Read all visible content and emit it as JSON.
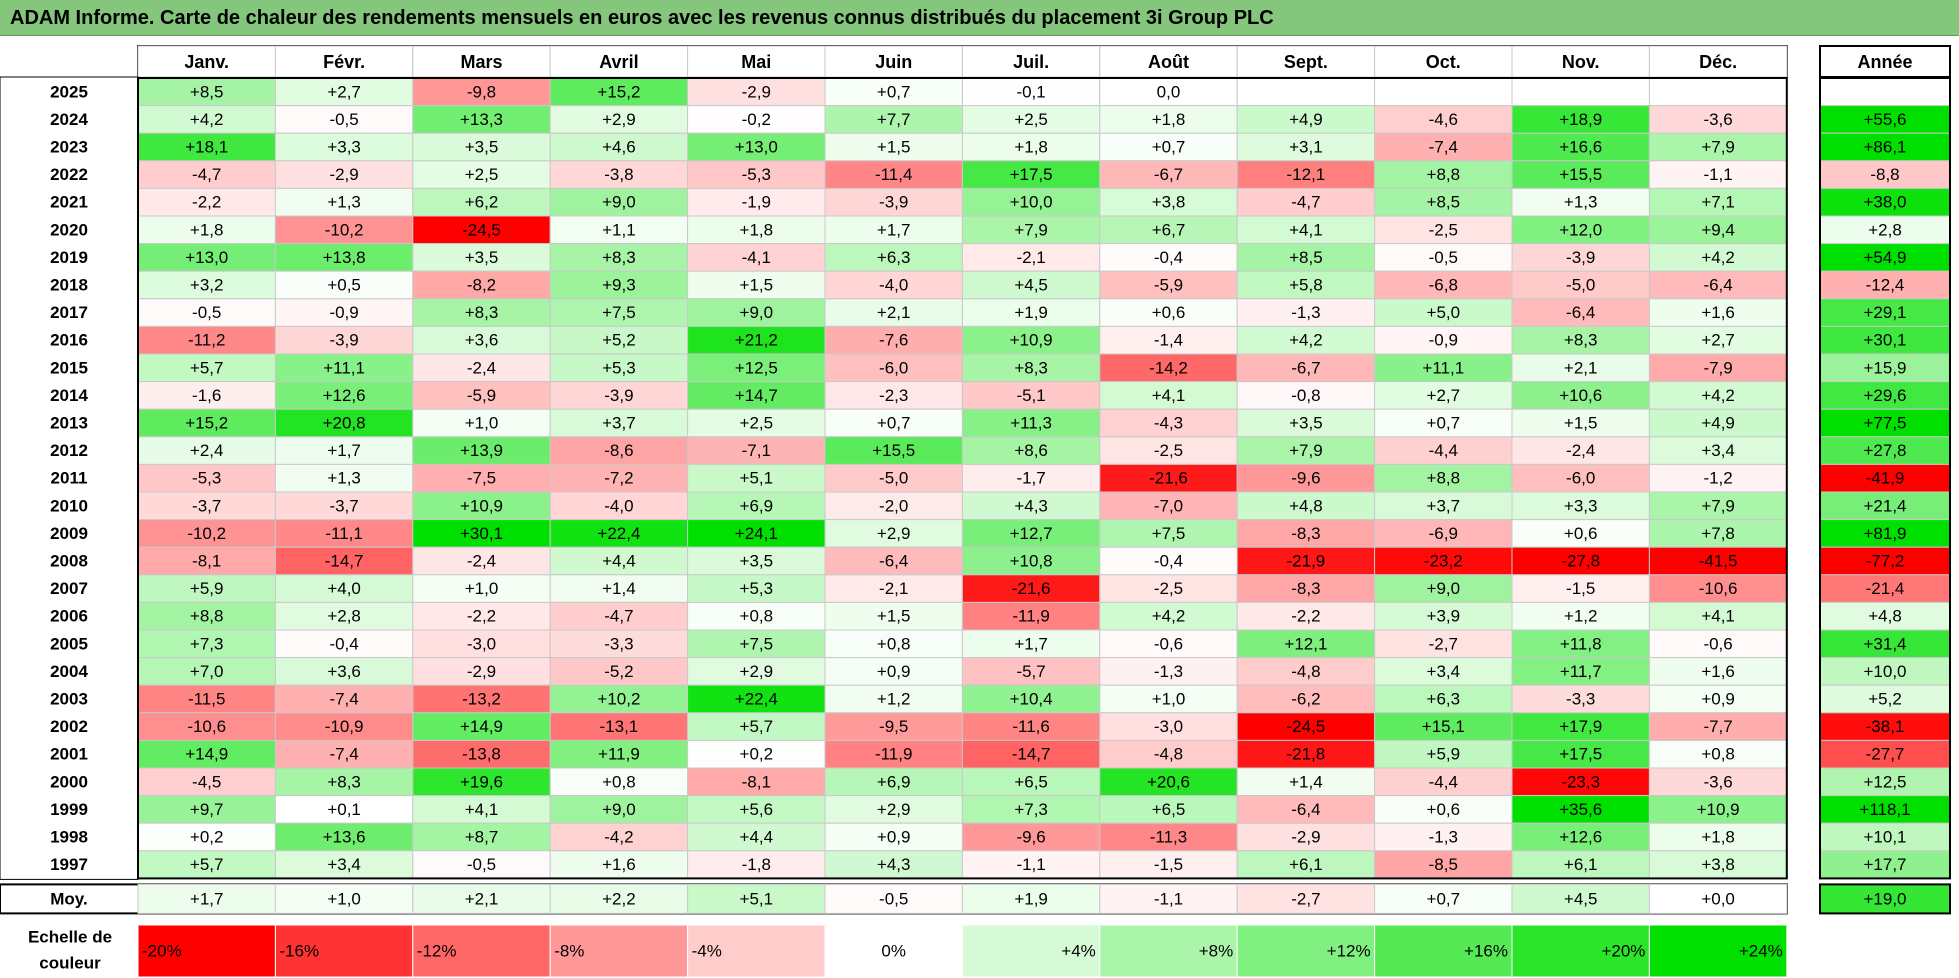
{
  "title": "ADAM Informe. Carte de chaleur des rendements mensuels en euros avec les revenus connus distribués du placement 3i Group PLC",
  "chart_data": {
    "type": "heatmap",
    "title": "ADAM Informe. Carte de chaleur des rendements mensuels en euros avec les revenus connus distribués du placement 3i Group PLC",
    "months": [
      "Janv.",
      "Févr.",
      "Mars",
      "Avril",
      "Mai",
      "Juin",
      "Juil.",
      "Août",
      "Sept.",
      "Oct.",
      "Nov.",
      "Déc."
    ],
    "year_header": "Année",
    "avg_label": "Moy.",
    "rows": [
      {
        "year": "2025",
        "values": [
          "+8,5",
          "+2,7",
          "-9,8",
          "+15,2",
          "-2,9",
          "+0,7",
          "-0,1",
          "0,0",
          "",
          "",
          "",
          ""
        ],
        "annual": ""
      },
      {
        "year": "2024",
        "values": [
          "+4,2",
          "-0,5",
          "+13,3",
          "+2,9",
          "-0,2",
          "+7,7",
          "+2,5",
          "+1,8",
          "+4,9",
          "-4,6",
          "+18,9",
          "-3,6"
        ],
        "annual": "+55,6"
      },
      {
        "year": "2023",
        "values": [
          "+18,1",
          "+3,3",
          "+3,5",
          "+4,6",
          "+13,0",
          "+1,5",
          "+1,8",
          "+0,7",
          "+3,1",
          "-7,4",
          "+16,6",
          "+7,9"
        ],
        "annual": "+86,1"
      },
      {
        "year": "2022",
        "values": [
          "-4,7",
          "-2,9",
          "+2,5",
          "-3,8",
          "-5,3",
          "-11,4",
          "+17,5",
          "-6,7",
          "-12,1",
          "+8,8",
          "+15,5",
          "-1,1"
        ],
        "annual": "-8,8"
      },
      {
        "year": "2021",
        "values": [
          "-2,2",
          "+1,3",
          "+6,2",
          "+9,0",
          "-1,9",
          "-3,9",
          "+10,0",
          "+3,8",
          "-4,7",
          "+8,5",
          "+1,3",
          "+7,1"
        ],
        "annual": "+38,0"
      },
      {
        "year": "2020",
        "values": [
          "+1,8",
          "-10,2",
          "-24,5",
          "+1,1",
          "+1,8",
          "+1,7",
          "+7,9",
          "+6,7",
          "+4,1",
          "-2,5",
          "+12,0",
          "+9,4"
        ],
        "annual": "+2,8"
      },
      {
        "year": "2019",
        "values": [
          "+13,0",
          "+13,8",
          "+3,5",
          "+8,3",
          "-4,1",
          "+6,3",
          "-2,1",
          "-0,4",
          "+8,5",
          "-0,5",
          "-3,9",
          "+4,2"
        ],
        "annual": "+54,9"
      },
      {
        "year": "2018",
        "values": [
          "+3,2",
          "+0,5",
          "-8,2",
          "+9,3",
          "+1,5",
          "-4,0",
          "+4,5",
          "-5,9",
          "+5,8",
          "-6,8",
          "-5,0",
          "-6,4"
        ],
        "annual": "-12,4"
      },
      {
        "year": "2017",
        "values": [
          "-0,5",
          "-0,9",
          "+8,3",
          "+7,5",
          "+9,0",
          "+2,1",
          "+1,9",
          "+0,6",
          "-1,3",
          "+5,0",
          "-6,4",
          "+1,6"
        ],
        "annual": "+29,1"
      },
      {
        "year": "2016",
        "values": [
          "-11,2",
          "-3,9",
          "+3,6",
          "+5,2",
          "+21,2",
          "-7,6",
          "+10,9",
          "-1,4",
          "+4,2",
          "-0,9",
          "+8,3",
          "+2,7"
        ],
        "annual": "+30,1"
      },
      {
        "year": "2015",
        "values": [
          "+5,7",
          "+11,1",
          "-2,4",
          "+5,3",
          "+12,5",
          "-6,0",
          "+8,3",
          "-14,2",
          "-6,7",
          "+11,1",
          "+2,1",
          "-7,9"
        ],
        "annual": "+15,9"
      },
      {
        "year": "2014",
        "values": [
          "-1,6",
          "+12,6",
          "-5,9",
          "-3,9",
          "+14,7",
          "-2,3",
          "-5,1",
          "+4,1",
          "-0,8",
          "+2,7",
          "+10,6",
          "+4,2"
        ],
        "annual": "+29,6"
      },
      {
        "year": "2013",
        "values": [
          "+15,2",
          "+20,8",
          "+1,0",
          "+3,7",
          "+2,5",
          "+0,7",
          "+11,3",
          "-4,3",
          "+3,5",
          "+0,7",
          "+1,5",
          "+4,9"
        ],
        "annual": "+77,5"
      },
      {
        "year": "2012",
        "values": [
          "+2,4",
          "+1,7",
          "+13,9",
          "-8,6",
          "-7,1",
          "+15,5",
          "+8,6",
          "-2,5",
          "+7,9",
          "-4,4",
          "-2,4",
          "+3,4"
        ],
        "annual": "+27,8"
      },
      {
        "year": "2011",
        "values": [
          "-5,3",
          "+1,3",
          "-7,5",
          "-7,2",
          "+5,1",
          "-5,0",
          "-1,7",
          "-21,6",
          "-9,6",
          "+8,8",
          "-6,0",
          "-1,2"
        ],
        "annual": "-41,9"
      },
      {
        "year": "2010",
        "values": [
          "-3,7",
          "-3,7",
          "+10,9",
          "-4,0",
          "+6,9",
          "-2,0",
          "+4,3",
          "-7,0",
          "+4,8",
          "+3,7",
          "+3,3",
          "+7,9"
        ],
        "annual": "+21,4"
      },
      {
        "year": "2009",
        "values": [
          "-10,2",
          "-11,1",
          "+30,1",
          "+22,4",
          "+24,1",
          "+2,9",
          "+12,7",
          "+7,5",
          "-8,3",
          "-6,9",
          "+0,6",
          "+7,8"
        ],
        "annual": "+81,9"
      },
      {
        "year": "2008",
        "values": [
          "-8,1",
          "-14,7",
          "-2,4",
          "+4,4",
          "+3,5",
          "-6,4",
          "+10,8",
          "-0,4",
          "-21,9",
          "-23,2",
          "-27,8",
          "-41,5"
        ],
        "annual": "-77,2"
      },
      {
        "year": "2007",
        "values": [
          "+5,9",
          "+4,0",
          "+1,0",
          "+1,4",
          "+5,3",
          "-2,1",
          "-21,6",
          "-2,5",
          "-8,3",
          "+9,0",
          "-1,5",
          "-10,6"
        ],
        "annual": "-21,4"
      },
      {
        "year": "2006",
        "values": [
          "+8,8",
          "+2,8",
          "-2,2",
          "-4,7",
          "+0,8",
          "+1,5",
          "-11,9",
          "+4,2",
          "-2,2",
          "+3,9",
          "+1,2",
          "+4,1"
        ],
        "annual": "+4,8"
      },
      {
        "year": "2005",
        "values": [
          "+7,3",
          "-0,4",
          "-3,0",
          "-3,3",
          "+7,5",
          "+0,8",
          "+1,7",
          "-0,6",
          "+12,1",
          "-2,7",
          "+11,8",
          "-0,6"
        ],
        "annual": "+31,4"
      },
      {
        "year": "2004",
        "values": [
          "+7,0",
          "+3,6",
          "-2,9",
          "-5,2",
          "+2,9",
          "+0,9",
          "-5,7",
          "-1,3",
          "-4,8",
          "+3,4",
          "+11,7",
          "+1,6"
        ],
        "annual": "+10,0"
      },
      {
        "year": "2003",
        "values": [
          "-11,5",
          "-7,4",
          "-13,2",
          "+10,2",
          "+22,4",
          "+1,2",
          "+10,4",
          "+1,0",
          "-6,2",
          "+6,3",
          "-3,3",
          "+0,9"
        ],
        "annual": "+5,2"
      },
      {
        "year": "2002",
        "values": [
          "-10,6",
          "-10,9",
          "+14,9",
          "-13,1",
          "+5,7",
          "-9,5",
          "-11,6",
          "-3,0",
          "-24,5",
          "+15,1",
          "+17,9",
          "-7,7"
        ],
        "annual": "-38,1"
      },
      {
        "year": "2001",
        "values": [
          "+14,9",
          "-7,4",
          "-13,8",
          "+11,9",
          "+0,2",
          "-11,9",
          "-14,7",
          "-4,8",
          "-21,8",
          "+5,9",
          "+17,5",
          "+0,8"
        ],
        "annual": "-27,7"
      },
      {
        "year": "2000",
        "values": [
          "-4,5",
          "+8,3",
          "+19,6",
          "+0,8",
          "-8,1",
          "+6,9",
          "+6,5",
          "+20,6",
          "+1,4",
          "-4,4",
          "-23,3",
          "-3,6"
        ],
        "annual": "+12,5"
      },
      {
        "year": "1999",
        "values": [
          "+9,7",
          "+0,1",
          "+4,1",
          "+9,0",
          "+5,6",
          "+2,9",
          "+7,3",
          "+6,5",
          "-6,4",
          "+0,6",
          "+35,6",
          "+10,9"
        ],
        "annual": "+118,1"
      },
      {
        "year": "1998",
        "values": [
          "+0,2",
          "+13,6",
          "+8,7",
          "-4,2",
          "+4,4",
          "+0,9",
          "-9,6",
          "-11,3",
          "-2,9",
          "-1,3",
          "+12,6",
          "+1,8"
        ],
        "annual": "+10,1"
      },
      {
        "year": "1997",
        "values": [
          "+5,7",
          "+3,4",
          "-0,5",
          "+1,6",
          "-1,8",
          "+4,3",
          "-1,1",
          "-1,5",
          "+6,1",
          "-8,5",
          "+6,1",
          "+3,8"
        ],
        "annual": "+17,7"
      }
    ],
    "averages": {
      "values": [
        "+1,7",
        "+1,0",
        "+2,1",
        "+2,2",
        "+5,1",
        "-0,5",
        "+1,9",
        "-1,1",
        "-2,7",
        "+0,7",
        "+4,5",
        "+0,0"
      ],
      "annual": "+19,0"
    },
    "scale_label": "Echelle de couleur",
    "scale": [
      "-20%",
      "-16%",
      "-12%",
      "-8%",
      "-4%",
      "0%",
      "+4%",
      "+8%",
      "+12%",
      "+16%",
      "+20%",
      "+24%"
    ],
    "colors": {
      "negative": "#ff0000",
      "neutral": "#ffffff",
      "positive": "#00e000",
      "title_bg": "#84c77c"
    }
  }
}
